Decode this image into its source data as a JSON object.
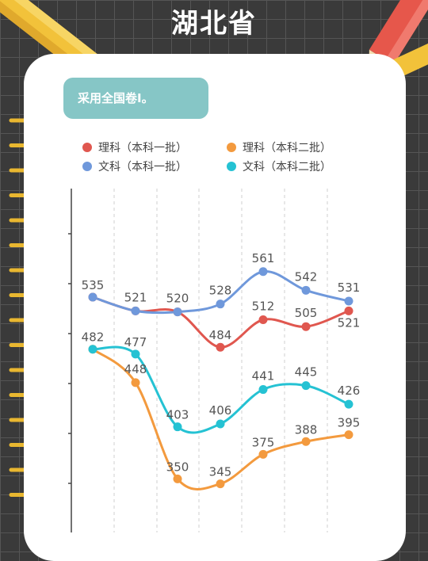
{
  "header": {
    "title": "湖北省"
  },
  "badge": {
    "text": "采用全国卷Ⅰ。"
  },
  "colors": {
    "sci1": "#e0574f",
    "sci2": "#f39a3e",
    "art1": "#6f98db",
    "art2": "#25c2d3",
    "background": "#3a3a3a",
    "badge": "#86c6c6"
  },
  "chart_data": {
    "type": "line",
    "x": [
      1,
      2,
      3,
      4,
      5,
      6,
      7
    ],
    "ylim": [
      300,
      600
    ],
    "grid": "vertical-dashed",
    "legend_position": "top",
    "series": [
      {
        "name": "理科（本科一批）",
        "color": "#e0574f",
        "values": [
          535,
          521,
          520,
          484,
          512,
          505,
          521
        ],
        "labels": [
          "",
          "",
          "",
          "484",
          "512",
          "505",
          "521"
        ]
      },
      {
        "name": "理科（本科二批）",
        "color": "#f39a3e",
        "values": [
          482,
          448,
          350,
          345,
          375,
          388,
          395
        ],
        "labels": [
          "",
          "448",
          "350",
          "345",
          "375",
          "388",
          "395"
        ]
      },
      {
        "name": "文科（本科一批）",
        "color": "#6f98db",
        "values": [
          535,
          521,
          520,
          528,
          561,
          542,
          531
        ],
        "labels": [
          "535",
          "521",
          "520",
          "528",
          "561",
          "542",
          "531"
        ]
      },
      {
        "name": "文科（本科二批）",
        "color": "#25c2d3",
        "values": [
          482,
          477,
          403,
          406,
          441,
          445,
          426
        ],
        "labels": [
          "482",
          "477",
          "403",
          "406",
          "441",
          "445",
          "426"
        ]
      }
    ]
  }
}
